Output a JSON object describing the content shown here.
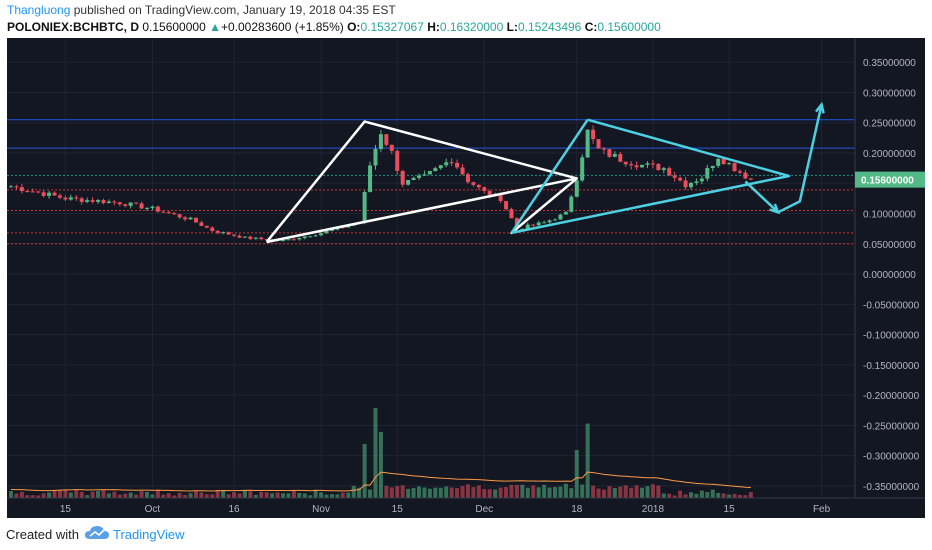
{
  "header": {
    "author": "Thangluong",
    "published": "published on TradingView.com, January 19, 2018 04:35 EST",
    "symbol": "POLONIEX:BCHBTC, D",
    "last": "0.15600000",
    "change_arrow": "▲",
    "change": "+0.00283600 (+1.85%)",
    "o_label": "O:",
    "o_value": "0.15327067",
    "h_label": "H:",
    "h_value": "0.16320000",
    "l_label": "L:",
    "l_value": "0.15243496",
    "c_label": "C:",
    "c_value": "0.15600000"
  },
  "footer": {
    "created_with": "Created with",
    "brand": "TradingView",
    "logo_icon": "tradingview-cloud-icon"
  },
  "colors": {
    "background": "#131722",
    "grid": "#1f2433",
    "axis_text": "#b2b5be",
    "up": "#53b987",
    "down": "#eb4d5c",
    "volume_ma": "#ff9b45",
    "pattern_white": "#ffffff",
    "pattern_cyan": "#4dd0e1",
    "price_label_bg": "#53b987",
    "resistance_line": "#2962ff",
    "support_line": "#e53935"
  },
  "chart_data": {
    "type": "candlestick",
    "title": "POLONIEX:BCHBTC, D",
    "ylim": [
      -0.37,
      0.39
    ],
    "y_ticks": [
      0.35,
      0.3,
      0.25,
      0.2,
      0.15,
      0.1,
      0.05,
      0.0,
      -0.05,
      -0.1,
      -0.15,
      -0.2,
      -0.25,
      -0.3,
      -0.35
    ],
    "y_tick_labels": [
      "0.35000000",
      "0.30000000",
      "0.25000000",
      "0.20000000",
      "0.15000000",
      "0.10000000",
      "0.05000000",
      "0.00000000",
      "-0.05000000",
      "-0.10000000",
      "-0.15000000",
      "-0.20000000",
      "-0.25000000",
      "-0.30000000",
      "-0.35000000"
    ],
    "x_start_date": "2017-09-05",
    "x_tick_labels": [
      {
        "date": "2017-09-15",
        "label": "15"
      },
      {
        "date": "2017-10-01",
        "label": "Oct"
      },
      {
        "date": "2017-10-16",
        "label": "16"
      },
      {
        "date": "2017-11-01",
        "label": "Nov"
      },
      {
        "date": "2017-11-15",
        "label": "15"
      },
      {
        "date": "2017-12-01",
        "label": "Dec"
      },
      {
        "date": "2017-12-18",
        "label": "18"
      },
      {
        "date": "2018-01-01",
        "label": "2018"
      },
      {
        "date": "2018-01-15",
        "label": "15"
      },
      {
        "date": "2018-02-01",
        "label": "Feb"
      }
    ],
    "last_price": 0.156,
    "last_price_label": "0.15600000",
    "close_series": [
      {
        "date": "2017-09-05",
        "close": 0.145
      },
      {
        "date": "2017-09-10",
        "close": 0.135
      },
      {
        "date": "2017-09-15",
        "close": 0.125
      },
      {
        "date": "2017-09-25",
        "close": 0.118
      },
      {
        "date": "2017-10-01",
        "close": 0.108
      },
      {
        "date": "2017-10-08",
        "close": 0.09
      },
      {
        "date": "2017-10-12",
        "close": 0.072
      },
      {
        "date": "2017-10-18",
        "close": 0.06
      },
      {
        "date": "2017-10-25",
        "close": 0.055
      },
      {
        "date": "2017-11-01",
        "close": 0.068
      },
      {
        "date": "2017-11-08",
        "close": 0.085
      },
      {
        "date": "2017-11-10",
        "close": 0.18
      },
      {
        "date": "2017-11-12",
        "close": 0.235
      },
      {
        "date": "2017-11-14",
        "close": 0.2
      },
      {
        "date": "2017-11-16",
        "close": 0.15
      },
      {
        "date": "2017-11-20",
        "close": 0.16
      },
      {
        "date": "2017-11-25",
        "close": 0.19
      },
      {
        "date": "2017-11-28",
        "close": 0.155
      },
      {
        "date": "2017-12-01",
        "close": 0.135
      },
      {
        "date": "2017-12-04",
        "close": 0.125
      },
      {
        "date": "2017-12-07",
        "close": 0.075
      },
      {
        "date": "2017-12-12",
        "close": 0.085
      },
      {
        "date": "2017-12-16",
        "close": 0.1
      },
      {
        "date": "2017-12-18",
        "close": 0.16
      },
      {
        "date": "2017-12-20",
        "close": 0.235
      },
      {
        "date": "2017-12-22",
        "close": 0.205
      },
      {
        "date": "2017-12-26",
        "close": 0.19
      },
      {
        "date": "2017-12-30",
        "close": 0.18
      },
      {
        "date": "2018-01-03",
        "close": 0.175
      },
      {
        "date": "2018-01-07",
        "close": 0.148
      },
      {
        "date": "2018-01-10",
        "close": 0.16
      },
      {
        "date": "2018-01-13",
        "close": 0.195
      },
      {
        "date": "2018-01-16",
        "close": 0.175
      },
      {
        "date": "2018-01-19",
        "close": 0.156
      }
    ],
    "volume_peaks": [
      {
        "date": "2017-11-11",
        "volume_frac": 0.75
      },
      {
        "date": "2017-11-12",
        "volume_frac": 0.55
      },
      {
        "date": "2017-11-09",
        "volume_frac": 0.45
      },
      {
        "date": "2017-12-20",
        "volume_frac": 0.62
      },
      {
        "date": "2017-12-18",
        "volume_frac": 0.4
      }
    ],
    "horizontal_lines": [
      {
        "price": 0.255,
        "color": "#2962ff"
      },
      {
        "price": 0.208,
        "color": "#2962ff"
      },
      {
        "price": 0.163,
        "color": "#26a69a",
        "dashed": true
      },
      {
        "price": 0.139,
        "color": "#e53935",
        "dashed": true
      },
      {
        "price": 0.105,
        "color": "#e53935",
        "dashed": true
      },
      {
        "price": 0.068,
        "color": "#e53935",
        "dashed": true
      },
      {
        "price": 0.05,
        "color": "#e53935",
        "dashed": true
      }
    ],
    "drawings": [
      {
        "name": "white-triangle",
        "color": "#ffffff",
        "points": [
          {
            "date": "2017-10-22",
            "price": 0.053
          },
          {
            "date": "2017-11-09",
            "price": 0.252
          },
          {
            "date": "2017-12-18",
            "price": 0.158
          },
          {
            "date": "2017-10-22",
            "price": 0.053
          }
        ]
      },
      {
        "name": "white-return-line",
        "color": "#ffffff",
        "points": [
          {
            "date": "2017-12-18",
            "price": 0.158
          },
          {
            "date": "2017-12-06",
            "price": 0.068
          },
          {
            "date": "2017-12-18",
            "price": 0.158
          }
        ]
      },
      {
        "name": "cyan-up-leg",
        "color": "#4dd0e1",
        "points": [
          {
            "date": "2017-12-06",
            "price": 0.068
          },
          {
            "date": "2017-12-20",
            "price": 0.255
          }
        ]
      },
      {
        "name": "cyan-triangle",
        "color": "#4dd0e1",
        "points": [
          {
            "date": "2017-12-06",
            "price": 0.068
          },
          {
            "date": "2018-01-26",
            "price": 0.162
          },
          {
            "date": "2017-12-20",
            "price": 0.255
          }
        ]
      },
      {
        "name": "cyan-projection",
        "color": "#4dd0e1",
        "arrow": true,
        "points": [
          {
            "date": "2018-01-18",
            "price": 0.153
          },
          {
            "date": "2018-01-24",
            "price": 0.102
          },
          {
            "date": "2018-01-28",
            "price": 0.12
          },
          {
            "date": "2018-02-01",
            "price": 0.28
          }
        ]
      }
    ]
  }
}
